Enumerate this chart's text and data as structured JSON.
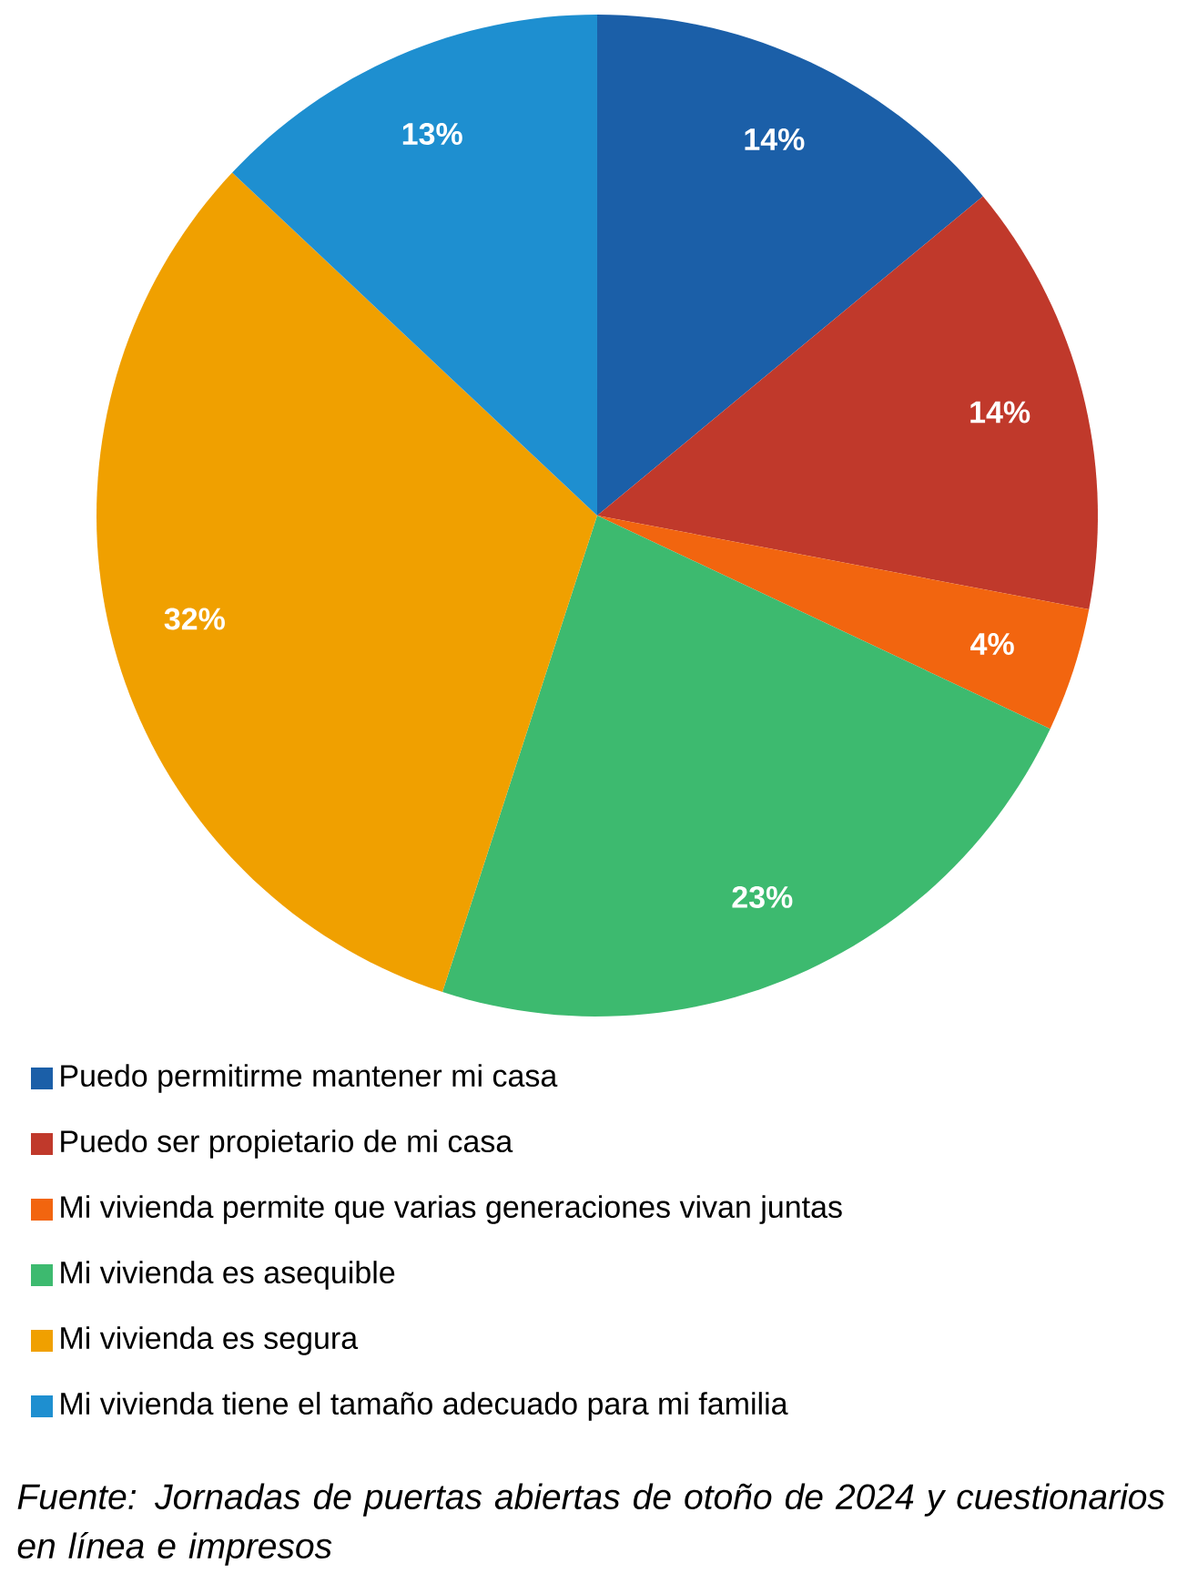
{
  "chart_data": {
    "type": "pie",
    "categories": [
      "Puedo permitirme mantener mi casa",
      "Puedo ser propietario de mi casa",
      "Mi vivienda permite que varias generaciones vivan juntas",
      "Mi vivienda es asequible",
      "Mi vivienda es segura",
      "Mi vivienda tiene el tamaño adecuado para mi familia"
    ],
    "values": [
      14,
      14,
      4,
      23,
      32,
      13
    ],
    "value_labels": [
      "14%",
      "14%",
      "4%",
      "23%",
      "32%",
      "13%"
    ],
    "colors": [
      "#1b5fa8",
      "#c0392b",
      "#f2650f",
      "#3dba6f",
      "#f0a000",
      "#1e8fd0"
    ],
    "legend": "bottom",
    "annotations": [
      "Fuente: Jornadas de puertas abiertas de otoño de 2024 y cuestionarios en línea e impresos"
    ]
  }
}
